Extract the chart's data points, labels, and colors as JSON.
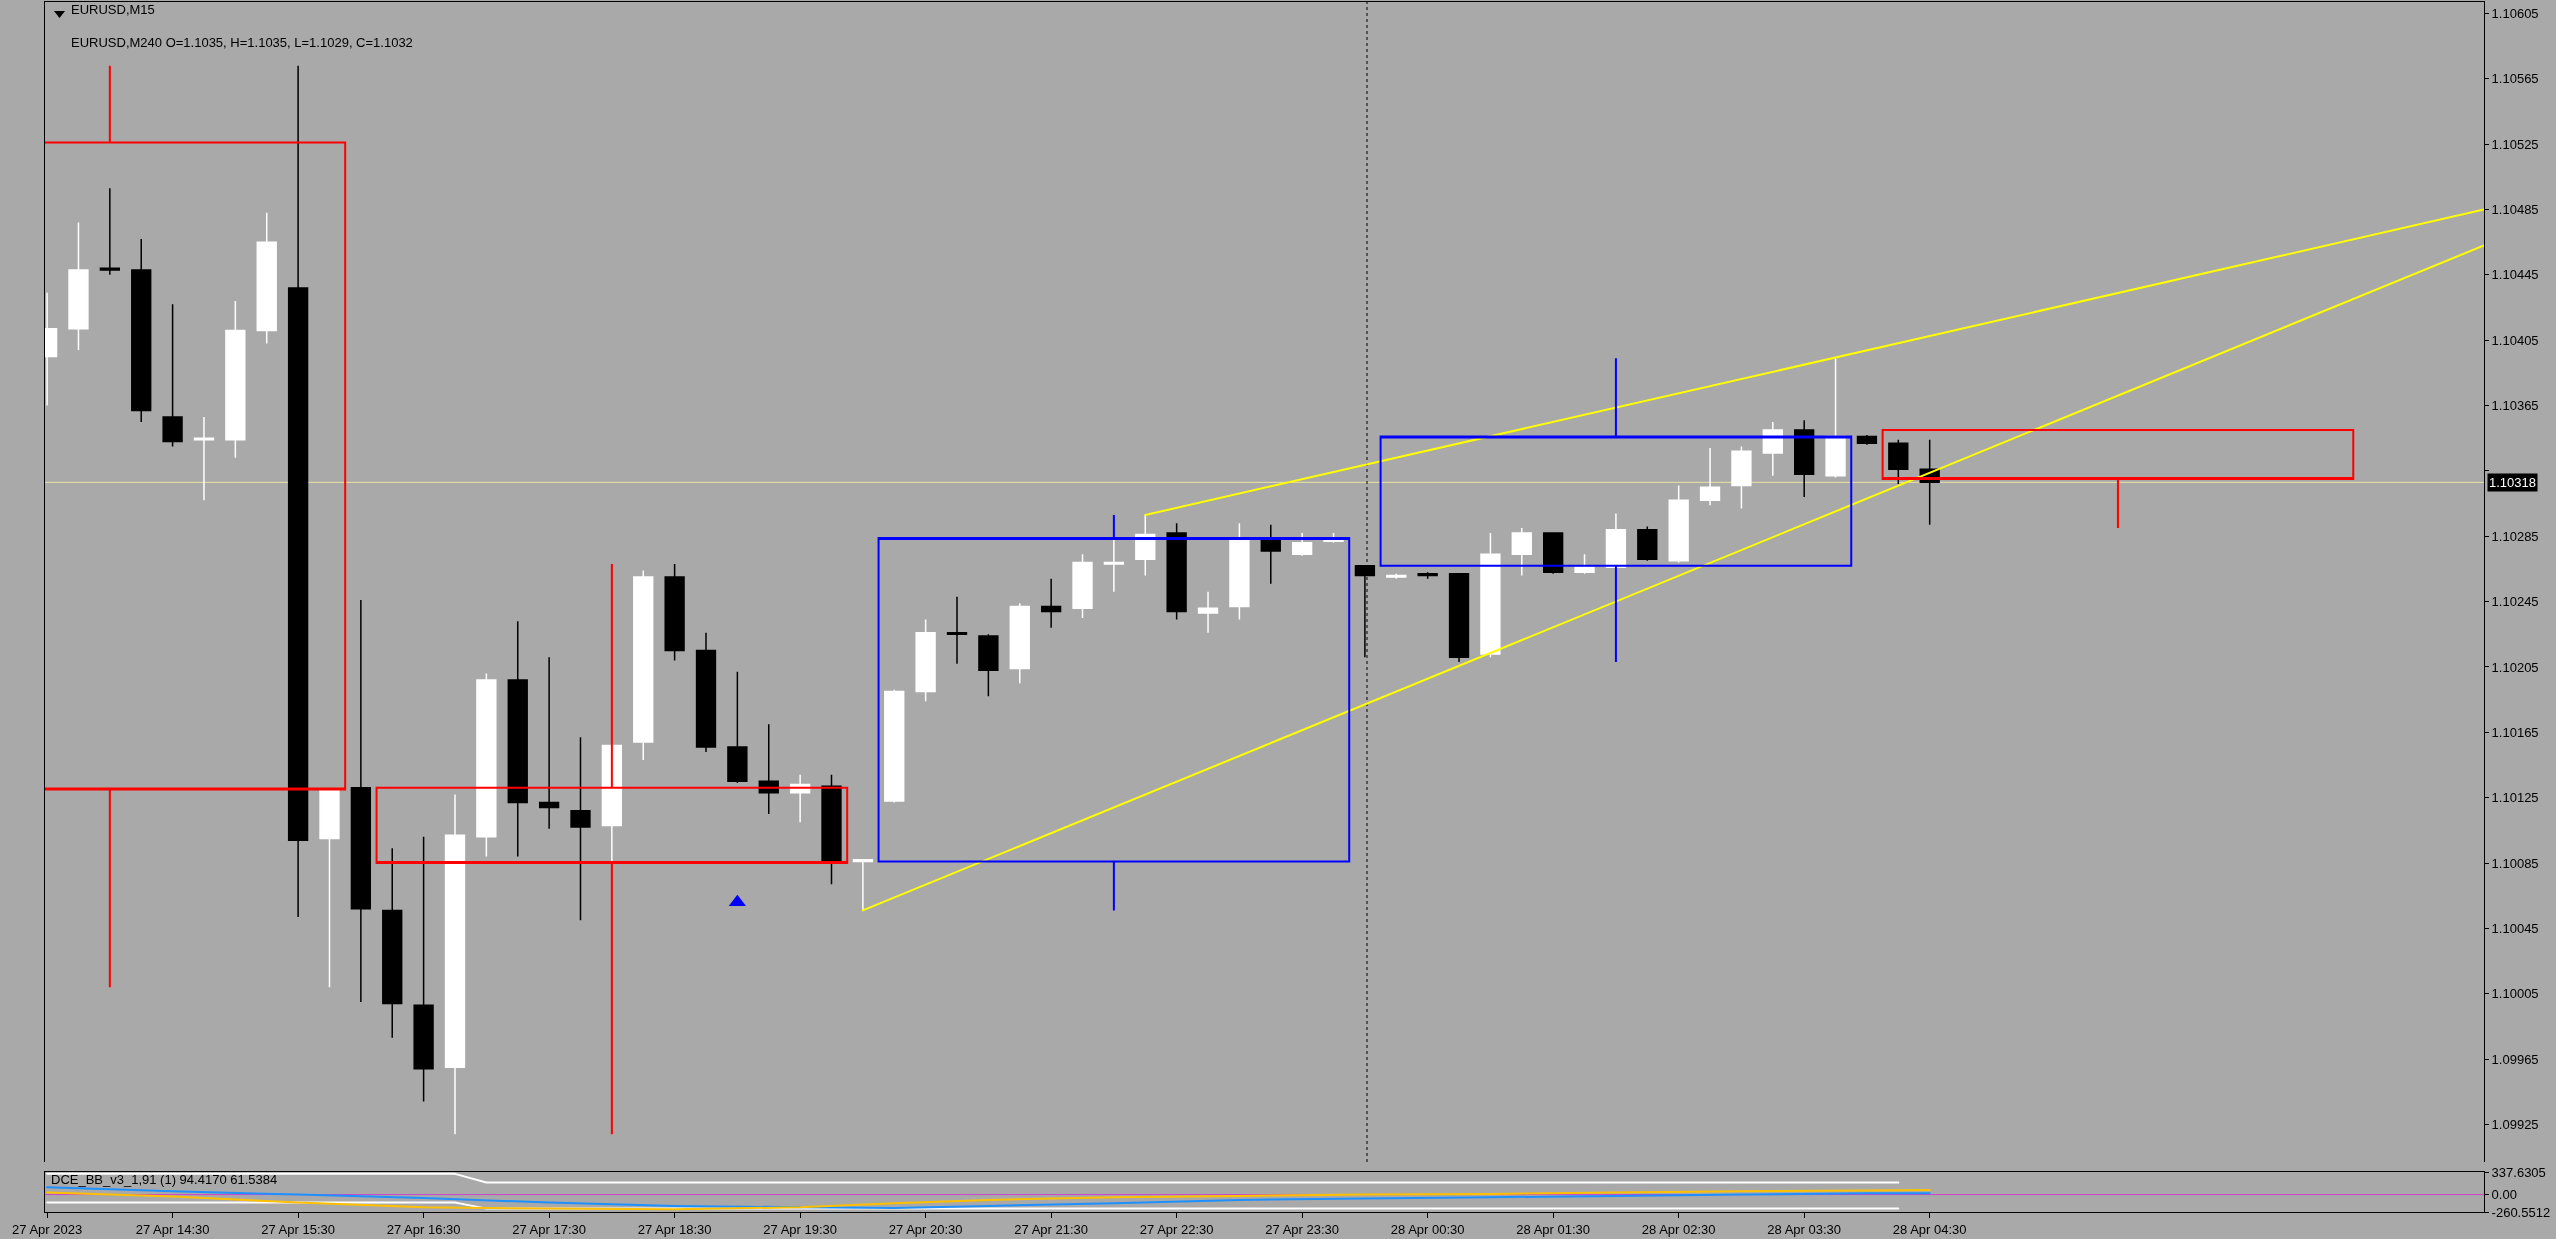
{
  "chart_data": [
    {
      "type": "candlestick",
      "title": "EURUSD,M15",
      "subtitle": "EURUSD,M240 O=1.1035, H=1.1035, L=1.1029, C=1.1032",
      "series": [
        {
          "x": [
            "2023-04-27T13:30",
            "2023-04-27T13:45",
            "2023-04-27T14:00",
            "2023-04-27T14:15",
            "2023-04-27T14:30",
            "2023-04-27T14:45",
            "2023-04-27T15:00",
            "2023-04-27T15:15",
            "2023-04-27T15:30",
            "2023-04-27T15:45",
            "2023-04-27T16:00",
            "2023-04-27T16:15",
            "2023-04-27T16:30",
            "2023-04-27T16:45",
            "2023-04-27T17:00",
            "2023-04-27T17:15",
            "2023-04-27T17:30",
            "2023-04-27T17:45",
            "2023-04-27T18:00",
            "2023-04-27T18:15",
            "2023-04-27T18:30",
            "2023-04-27T18:45",
            "2023-04-27T19:00",
            "2023-04-27T19:15",
            "2023-04-27T19:30",
            "2023-04-27T19:45",
            "2023-04-27T20:00",
            "2023-04-27T20:15",
            "2023-04-27T20:30",
            "2023-04-27T20:45",
            "2023-04-27T21:00",
            "2023-04-27T21:15",
            "2023-04-27T21:30",
            "2023-04-27T21:45",
            "2023-04-27T22:00",
            "2023-04-27T22:15",
            "2023-04-27T22:30",
            "2023-04-27T22:45",
            "2023-04-27T23:00",
            "2023-04-27T23:15",
            "2023-04-27T23:30",
            "2023-04-27T23:45",
            "2023-04-28T00:00",
            "2023-04-28T00:15",
            "2023-04-28T00:30",
            "2023-04-28T00:45",
            "2023-04-28T01:00",
            "2023-04-28T01:15",
            "2023-04-28T01:30",
            "2023-04-28T01:45",
            "2023-04-28T02:00",
            "2023-04-28T02:15",
            "2023-04-28T02:30",
            "2023-04-28T02:45",
            "2023-04-28T03:00",
            "2023-04-28T03:15",
            "2023-04-28T03:30",
            "2023-04-28T03:45",
            "2023-04-28T04:00",
            "2023-04-28T04:15",
            "2023-04-28T04:30"
          ],
          "ohlc": [
            [
              1.10395,
              1.10434,
              1.10365,
              1.10412
            ],
            [
              1.10412,
              1.10477,
              1.10399,
              1.10448
            ],
            [
              1.10449,
              1.10498,
              1.10445,
              1.10448
            ],
            [
              1.10448,
              1.10467,
              1.10355,
              1.10362
            ],
            [
              1.10358,
              1.10427,
              1.1034,
              1.10343
            ],
            [
              1.10344,
              1.10358,
              1.10307,
              1.10345
            ],
            [
              1.10344,
              1.10429,
              1.10333,
              1.10411
            ],
            [
              1.10411,
              1.10483,
              1.10403,
              1.10465
            ],
            [
              1.10437,
              1.10573,
              1.10052,
              1.10099
            ],
            [
              1.101,
              1.1013,
              1.10009,
              1.1013
            ],
            [
              1.10131,
              1.10246,
              1.1,
              1.10057
            ],
            [
              1.10056,
              1.10094,
              1.09978,
              1.09999
            ],
            [
              1.09998,
              1.10101,
              1.09939,
              1.09959
            ],
            [
              1.0996,
              1.10127,
              1.09919,
              1.10102
            ],
            [
              1.10101,
              1.10201,
              1.10089,
              1.10197
            ],
            [
              1.10197,
              1.10233,
              1.10089,
              1.10122
            ],
            [
              1.10122,
              1.10211,
              1.10106,
              1.10119
            ],
            [
              1.10117,
              1.10162,
              1.1005,
              1.10107
            ],
            [
              1.10108,
              1.10158,
              1.10085,
              1.10157
            ],
            [
              1.10159,
              1.10264,
              1.10148,
              1.1026
            ],
            [
              1.1026,
              1.10268,
              1.10209,
              1.10215
            ],
            [
              1.10215,
              1.10226,
              1.10153,
              1.10156
            ],
            [
              1.10156,
              1.10202,
              1.10134,
              1.10135
            ],
            [
              1.10135,
              1.1017,
              1.10115,
              1.10128
            ],
            [
              1.10128,
              1.10139,
              1.1011,
              1.10133
            ],
            [
              1.10132,
              1.10139,
              1.10072,
              1.10085
            ],
            [
              1.10086,
              1.10087,
              1.10056,
              1.10087
            ],
            [
              1.10123,
              1.10191,
              1.10122,
              1.1019
            ],
            [
              1.1019,
              1.10234,
              1.10184,
              1.10226
            ],
            [
              1.10226,
              1.10248,
              1.10207,
              1.10225
            ],
            [
              1.10224,
              1.10225,
              1.10187,
              1.10203
            ],
            [
              1.10204,
              1.10244,
              1.10195,
              1.10242
            ],
            [
              1.10242,
              1.10259,
              1.10229,
              1.10239
            ],
            [
              1.10241,
              1.10274,
              1.10235,
              1.10269
            ],
            [
              1.10268,
              1.10284,
              1.10251,
              1.10269
            ],
            [
              1.10271,
              1.10298,
              1.10261,
              1.10286
            ],
            [
              1.10287,
              1.10293,
              1.10234,
              1.10239
            ],
            [
              1.10238,
              1.10251,
              1.10226,
              1.10241
            ],
            [
              1.10242,
              1.10293,
              1.10234,
              1.10283
            ],
            [
              1.10283,
              1.10292,
              1.10256,
              1.10276
            ],
            [
              1.10274,
              1.10287,
              1.10273,
              1.10281
            ],
            [
              1.10282,
              1.10287,
              1.10281,
              1.10284
            ],
            [
              1.10267,
              1.10267,
              1.10211,
              1.10261
            ],
            [
              1.1026,
              1.10262,
              1.10259,
              1.10261
            ],
            [
              1.10262,
              1.10263,
              1.10259,
              1.10261
            ],
            [
              1.10262,
              1.10262,
              1.10208,
              1.10211
            ],
            [
              1.10213,
              1.10287,
              1.10211,
              1.10274
            ],
            [
              1.10274,
              1.1029,
              1.10261,
              1.10287
            ],
            [
              1.10287,
              1.10287,
              1.10262,
              1.10263
            ],
            [
              1.10263,
              1.10274,
              1.10262,
              1.10266
            ],
            [
              1.10266,
              1.10299,
              1.10265,
              1.10289
            ],
            [
              1.10289,
              1.10291,
              1.1027,
              1.10271
            ],
            [
              1.1027,
              1.10316,
              1.10269,
              1.10307
            ],
            [
              1.10307,
              1.10339,
              1.10304,
              1.10315
            ],
            [
              1.10316,
              1.1034,
              1.10302,
              1.10337
            ],
            [
              1.10336,
              1.10355,
              1.10322,
              1.1035
            ],
            [
              1.1035,
              1.10356,
              1.10309,
              1.10323
            ],
            [
              1.10322,
              1.10394,
              1.10321,
              1.10346
            ],
            [
              1.10346,
              1.10347,
              1.10341,
              1.10342
            ],
            [
              1.10342,
              1.10344,
              1.10317,
              1.10326
            ],
            [
              1.10326,
              1.10344,
              1.10292,
              1.10318
            ]
          ],
          "colors": [
            "#ffffff",
            "#ffffff",
            "#000000",
            "#000000",
            "#000000",
            "#ffffff",
            "#ffffff",
            "#ffffff",
            "#000000",
            "#ffffff",
            "#000000",
            "#000000",
            "#000000",
            "#ffffff",
            "#ffffff",
            "#000000",
            "#000000",
            "#000000",
            "#ffffff",
            "#ffffff",
            "#000000",
            "#000000",
            "#000000",
            "#000000",
            "#ffffff",
            "#000000",
            "#ffffff",
            "#ffffff",
            "#ffffff",
            "#000000",
            "#000000",
            "#ffffff",
            "#000000",
            "#ffffff",
            "#ffffff",
            "#ffffff",
            "#000000",
            "#ffffff",
            "#ffffff",
            "#000000",
            "#ffffff",
            "#ffffff",
            "#000000",
            "#ffffff",
            "#000000",
            "#000000",
            "#ffffff",
            "#ffffff",
            "#000000",
            "#ffffff",
            "#ffffff",
            "#000000",
            "#ffffff",
            "#ffffff",
            "#ffffff",
            "#ffffff",
            "#000000",
            "#ffffff",
            "#000000",
            "#000000",
            "#000000"
          ]
        },
        {
          "type": "candlestick",
          "x": [
            "2023-04-27T14:00",
            "2023-04-27T18:00",
            "2023-04-27T22:00",
            "2023-04-28T02:00",
            "2023-04-28T06:00"
          ],
          "ohlc": [
            [
              1.10526,
              1.10573,
              1.10009,
              1.1013
            ],
            [
              1.10131,
              1.10268,
              1.09919,
              1.10085
            ],
            [
              1.10086,
              1.10298,
              1.10056,
              1.10284
            ],
            [
              1.10267,
              1.10394,
              1.10208,
              1.10346
            ],
            [
              1.1035,
              1.1035,
              1.1029,
              1.1032
            ]
          ],
          "colors": [
            "#ff0000",
            "#ff0000",
            "#0000ff",
            "#0000ff",
            "#ff0000"
          ]
        },
        {
          "type": "line",
          "x": [
            "2023-04-27T22:15",
            "2023-04-28T08:55"
          ],
          "values": [
            1.10298,
            1.10485
          ],
          "color": "#ffff00"
        },
        {
          "type": "line",
          "x": [
            "2023-04-27T20:00",
            "2023-04-28T08:55"
          ],
          "values": [
            1.10056,
            1.10463
          ],
          "color": "#ffff00"
        },
        {
          "type": "scatter",
          "x": [
            "2023-04-27T19:00"
          ],
          "values": [
            1.10061
          ],
          "color": "#0000ff",
          "marker": "triangle"
        }
      ],
      "xlim": [
        "2023-04-27T13:29",
        "2023-04-28T08:55"
      ],
      "ylim": [
        1.09902,
        1.10612
      ],
      "yticks": [
        1.09925,
        1.09965,
        1.10005,
        1.10045,
        1.10085,
        1.10125,
        1.10165,
        1.10205,
        1.10245,
        1.10285,
        {
          "value": 1.10325,
          "label": null
        },
        1.10365,
        1.10405,
        1.10445,
        1.10485,
        1.10525,
        1.10565,
        1.10605
      ],
      "tick_labels": "y",
      "ref_lines": [
        {
          "axis": "y",
          "value": 1.10318,
          "label": "1.10318",
          "color": "#e8e4a0"
        },
        {
          "axis": "x",
          "value": "2023-04-28T00:01",
          "color": "#000000",
          "line_style": "dotted"
        }
      ],
      "grid": false
    },
    {
      "type": "line",
      "title": "DCE_BB_v3_1,91 (1) 94.4170 61.5384",
      "series": [
        {
          "x": [
            "2023-04-27T13:30",
            "2023-04-27T16:45",
            "2023-04-27T17:00",
            "2023-04-28T04:15"
          ],
          "values": [
            310,
            310,
            180,
            180
          ],
          "color": "#ffffff"
        },
        {
          "x": [
            "2023-04-27T13:30",
            "2023-04-27T16:45",
            "2023-04-27T17:00",
            "2023-04-28T04:15"
          ],
          "values": [
            -120,
            -120,
            -210,
            -210
          ],
          "color": "#ffffff"
        },
        {
          "x": [
            "2023-04-27T13:30",
            "2023-04-27T14:30",
            "2023-04-27T15:30",
            "2023-04-27T16:30",
            "2023-04-27T17:30",
            "2023-04-27T18:30",
            "2023-04-27T19:30",
            "2023-04-27T20:15",
            "2023-04-27T21:00",
            "2023-04-27T22:00",
            "2023-04-27T23:00",
            "2023-04-28T00:00",
            "2023-04-28T01:00",
            "2023-04-28T02:00",
            "2023-04-28T03:00",
            "2023-04-28T04:00",
            "2023-04-28T04:30"
          ],
          "values": [
            110,
            50,
            0,
            -50,
            -120,
            -170,
            -190,
            -200,
            -170,
            -130,
            -80,
            -60,
            -40,
            -20,
            0,
            20,
            20
          ],
          "color": "#1e90ff"
        },
        {
          "x": [
            "2023-04-27T13:30",
            "2023-04-27T14:30",
            "2023-04-27T15:30",
            "2023-04-27T16:30",
            "2023-04-27T17:30",
            "2023-04-27T18:30",
            "2023-04-27T19:30",
            "2023-04-27T20:15",
            "2023-04-27T21:00",
            "2023-04-27T22:00",
            "2023-04-27T23:00",
            "2023-04-28T00:00",
            "2023-04-28T01:00",
            "2023-04-28T02:00",
            "2023-04-28T03:00",
            "2023-04-28T04:00",
            "2023-04-28T04:30"
          ],
          "values": [
            30,
            -30,
            -120,
            -190,
            -210,
            -220,
            -190,
            -130,
            -80,
            -40,
            -20,
            0,
            10,
            30,
            50,
            60,
            70
          ],
          "color": "#ffc000"
        }
      ],
      "xlim": [
        "2023-04-27T13:29",
        "2023-04-28T08:55"
      ],
      "xticks": [
        {
          "value": "2023-04-27T13:30",
          "label": "27 Apr 2023"
        },
        {
          "value": "2023-04-27T14:30",
          "label": "27 Apr 14:30"
        },
        {
          "value": "2023-04-27T15:30",
          "label": "27 Apr 15:30"
        },
        {
          "value": "2023-04-27T16:30",
          "label": "27 Apr 16:30"
        },
        {
          "value": "2023-04-27T17:30",
          "label": "27 Apr 17:30"
        },
        {
          "value": "2023-04-27T18:30",
          "label": "27 Apr 18:30"
        },
        {
          "value": "2023-04-27T19:30",
          "label": "27 Apr 19:30"
        },
        {
          "value": "2023-04-27T20:30",
          "label": "27 Apr 20:30"
        },
        {
          "value": "2023-04-27T21:30",
          "label": "27 Apr 21:30"
        },
        {
          "value": "2023-04-27T22:30",
          "label": "27 Apr 22:30"
        },
        {
          "value": "2023-04-27T23:30",
          "label": "27 Apr 23:30"
        },
        {
          "value": "2023-04-28T00:30",
          "label": "28 Apr 00:30"
        },
        {
          "value": "2023-04-28T01:30",
          "label": "28 Apr 01:30"
        },
        {
          "value": "2023-04-28T02:30",
          "label": "28 Apr 02:30"
        },
        {
          "value": "2023-04-28T03:30",
          "label": "28 Apr 03:30"
        },
        {
          "value": "2023-04-28T04:30",
          "label": "28 Apr 04:30"
        }
      ],
      "ylim": [
        -260.5512,
        337.6305
      ],
      "yticks": [
        337.6305,
        {
          "value": 0,
          "label": "0.00"
        },
        -260.5512
      ],
      "ref_lines": [
        {
          "axis": "y",
          "value": 0,
          "color": "#cc44cc"
        }
      ],
      "grid": false
    }
  ]
}
